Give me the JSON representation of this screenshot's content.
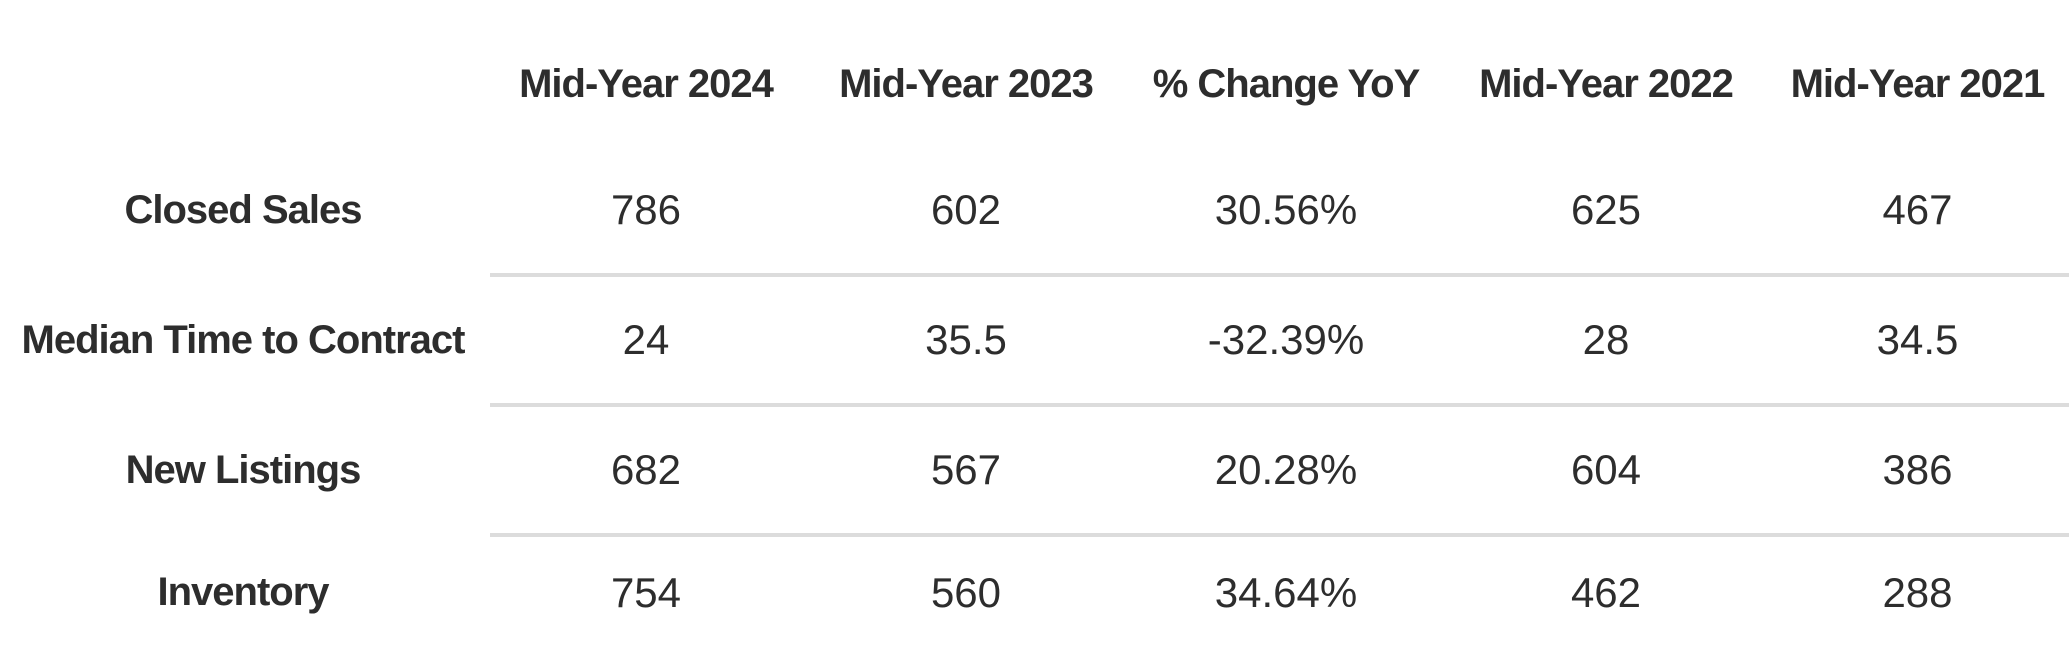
{
  "table": {
    "corner_label": "",
    "columns": [
      "Mid-Year 2024",
      "Mid-Year 2023",
      "% Change YoY",
      "Mid-Year 2022",
      "Mid-Year 2021"
    ],
    "rows": [
      {
        "label": "Closed Sales",
        "values": [
          "786",
          "602",
          "30.56%",
          "625",
          "467"
        ]
      },
      {
        "label": "Median Time to Contract",
        "values": [
          "24",
          "35.5",
          "-32.39%",
          "28",
          "34.5"
        ]
      },
      {
        "label": "New Listings",
        "values": [
          "682",
          "567",
          "20.28%",
          "604",
          "386"
        ]
      },
      {
        "label": "Inventory",
        "values": [
          "754",
          "560",
          "34.64%",
          "462",
          "288"
        ]
      }
    ],
    "colors": {
      "text": "#2d2d2d",
      "divider": "#dcdcdc",
      "background": "#ffffff"
    }
  },
  "chart_data": {
    "type": "table",
    "title": "",
    "columns": [
      "Mid-Year 2024",
      "Mid-Year 2023",
      "% Change YoY",
      "Mid-Year 2022",
      "Mid-Year 2021"
    ],
    "categories": [
      "Closed Sales",
      "Median Time to Contract",
      "New Listings",
      "Inventory"
    ],
    "series": [
      {
        "name": "Mid-Year 2024",
        "values": [
          786,
          24,
          682,
          754
        ]
      },
      {
        "name": "Mid-Year 2023",
        "values": [
          602,
          35.5,
          567,
          560
        ]
      },
      {
        "name": "% Change YoY",
        "values": [
          30.56,
          -32.39,
          20.28,
          34.64
        ]
      },
      {
        "name": "Mid-Year 2022",
        "values": [
          625,
          28,
          604,
          462
        ]
      },
      {
        "name": "Mid-Year 2021",
        "values": [
          467,
          34.5,
          386,
          288
        ]
      }
    ]
  }
}
